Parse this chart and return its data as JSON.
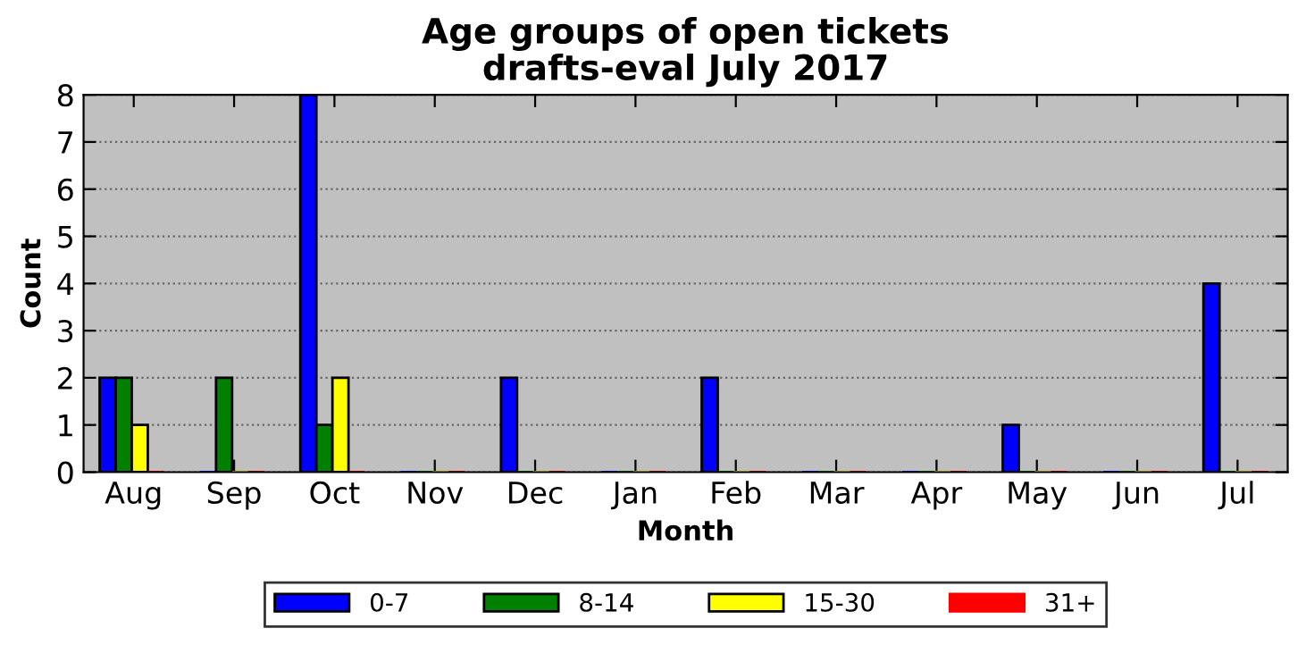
{
  "chart_data": {
    "type": "bar",
    "title": "Age groups of open tickets\ndrafts-eval July 2017",
    "xlabel": "Month",
    "ylabel": "Count",
    "categories": [
      "Aug",
      "Sep",
      "Oct",
      "Nov",
      "Dec",
      "Jan",
      "Feb",
      "Mar",
      "Apr",
      "May",
      "Jun",
      "Jul"
    ],
    "series": [
      {
        "name": "0-7",
        "color": "#0000ff",
        "values": [
          2,
          0,
          8,
          0,
          2,
          0,
          2,
          0,
          0,
          1,
          0,
          4
        ]
      },
      {
        "name": "8-14",
        "color": "#008000",
        "values": [
          2,
          2,
          1,
          0,
          0,
          0,
          0,
          0,
          0,
          0,
          0,
          0
        ]
      },
      {
        "name": "15-30",
        "color": "#ffff00",
        "values": [
          1,
          0,
          2,
          0,
          0,
          0,
          0,
          0,
          0,
          0,
          0,
          0
        ]
      },
      {
        "name": "31+",
        "color": "#ff0000",
        "values": [
          0,
          0,
          0,
          0,
          0,
          0,
          0,
          0,
          0,
          0,
          0,
          0
        ]
      }
    ],
    "ylim": [
      0,
      8
    ],
    "yticks": [
      0,
      1,
      2,
      3,
      4,
      5,
      6,
      7,
      8
    ],
    "grid": "y",
    "legend": "bottom"
  }
}
